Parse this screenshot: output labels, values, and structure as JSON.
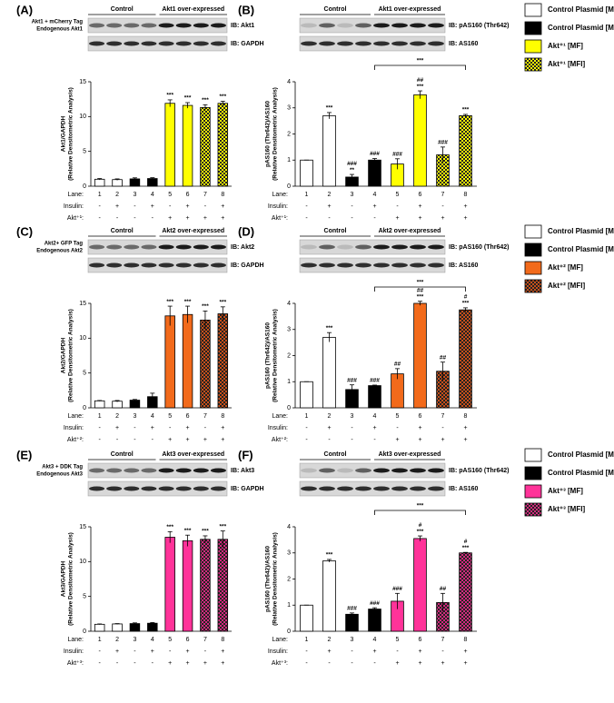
{
  "chart_data": [
    {
      "type": "bar",
      "panel": "(A)",
      "blot": {
        "groups": [
          "Control",
          "Akt1 over-expressed"
        ],
        "left_labels": [
          "Akt1 + mCherry Tag",
          "Endogenous Akt1"
        ],
        "ib_labels": [
          "IB: Akt1",
          "IB: GAPDH"
        ]
      },
      "ylabel": [
        "Akt1/GAPDH",
        "(Relative Densitometric Analysis)"
      ],
      "categories": [
        "1",
        "2",
        "3",
        "4",
        "5",
        "6",
        "7",
        "8"
      ],
      "values": [
        1,
        0.95,
        1.05,
        1.1,
        11.9,
        11.6,
        11.3,
        11.9
      ],
      "errors": [
        0.1,
        0.1,
        0.15,
        0.12,
        0.5,
        0.4,
        0.4,
        0.3
      ],
      "annotations": [
        [],
        [],
        [],
        [],
        [
          "***"
        ],
        [
          "***"
        ],
        [
          "***"
        ],
        [
          "***"
        ]
      ],
      "bar_colors": [
        "#ffffff",
        "#ffffff",
        "#000000",
        "#000000",
        "#ffff00",
        "#ffff00",
        "#ffff00",
        "#ffff00"
      ],
      "bar_hatch": [
        false,
        false,
        false,
        false,
        false,
        false,
        true,
        true
      ],
      "ylim": [
        0,
        15
      ],
      "yticks": [
        0,
        5,
        10,
        15
      ],
      "row_labels": [
        "Lane:",
        "Insulin:",
        "Akt⁺¹:"
      ],
      "insulin": [
        "-",
        "+",
        "-",
        "+",
        "-",
        "+",
        "-",
        "+"
      ],
      "akt": [
        "-",
        "-",
        "-",
        "-",
        "+",
        "+",
        "+",
        "+"
      ]
    },
    {
      "type": "bar",
      "panel": "(B)",
      "blot": {
        "groups": [
          "Control",
          "Akt1 over-expressed"
        ],
        "ib_labels": [
          "IB: pAS160 (Thr642)",
          "IB: AS160"
        ]
      },
      "ylabel": [
        "pAS160 (Thr642)/AS160",
        "(Relative Densitometric Analysis)"
      ],
      "categories": [
        "1",
        "2",
        "3",
        "4",
        "5",
        "6",
        "7",
        "8"
      ],
      "values": [
        1,
        2.7,
        0.35,
        1,
        0.85,
        3.5,
        1.2,
        2.7
      ],
      "errors": [
        0,
        0.12,
        0.1,
        0.06,
        0.2,
        0.15,
        0.3,
        0.05
      ],
      "annotations": [
        [],
        [
          "***"
        ],
        [
          "###",
          "**"
        ],
        [
          "###"
        ],
        [
          "###"
        ],
        [
          "##",
          "***"
        ],
        [
          "###"
        ],
        [
          "***"
        ]
      ],
      "bracket": {
        "lanes": [
          "4",
          "8"
        ],
        "label": "***"
      },
      "bar_colors": [
        "#ffffff",
        "#ffffff",
        "#000000",
        "#000000",
        "#ffff00",
        "#ffff00",
        "#ffff00",
        "#ffff00"
      ],
      "bar_hatch": [
        false,
        false,
        false,
        false,
        false,
        false,
        true,
        true
      ],
      "ylim": [
        0,
        4
      ],
      "yticks": [
        0,
        1,
        2,
        3,
        4
      ],
      "row_labels": [
        "Lane:",
        "Insulin:",
        "Akt⁺¹:"
      ],
      "insulin": [
        "-",
        "+",
        "-",
        "+",
        "-",
        "+",
        "-",
        "+"
      ],
      "akt": [
        "-",
        "-",
        "-",
        "-",
        "+",
        "+",
        "+",
        "+"
      ],
      "legend": [
        {
          "name": "Control Plasmid [MF]",
          "color": "#ffffff",
          "hatch": false
        },
        {
          "name": "Control Plasmid [MFI]",
          "color": "#000000",
          "hatch": false
        },
        {
          "name": "Akt⁺¹ [MF]",
          "color": "#ffff00",
          "hatch": false
        },
        {
          "name": "Akt⁺¹ [MFI]",
          "color": "#ffff00",
          "hatch": true
        }
      ]
    },
    {
      "type": "bar",
      "panel": "(C)",
      "blot": {
        "groups": [
          "Control",
          "Akt2 over-expressed"
        ],
        "left_labels": [
          "Akt2+ GFP Tag",
          "Endogenous Akt2"
        ],
        "ib_labels": [
          "IB: Akt2",
          "IB: GAPDH"
        ]
      },
      "ylabel": [
        "Akt2/GAPDH",
        "(Relative Densitometric Analysis)"
      ],
      "categories": [
        "1",
        "2",
        "3",
        "4",
        "5",
        "6",
        "7",
        "8"
      ],
      "values": [
        1,
        0.95,
        1.1,
        1.6,
        13.2,
        13.4,
        12.6,
        13.5
      ],
      "errors": [
        0.05,
        0.1,
        0.1,
        0.5,
        1.4,
        1.2,
        1.3,
        1.0
      ],
      "annotations": [
        [],
        [],
        [],
        [],
        [
          "***"
        ],
        [
          "***"
        ],
        [
          "***"
        ],
        [
          "***"
        ]
      ],
      "bar_colors": [
        "#ffffff",
        "#ffffff",
        "#000000",
        "#000000",
        "#f26a1b",
        "#f26a1b",
        "#c8501a",
        "#c8501a"
      ],
      "bar_hatch": [
        false,
        false,
        false,
        false,
        false,
        false,
        true,
        true
      ],
      "ylim": [
        0,
        15
      ],
      "yticks": [
        0,
        5,
        10,
        15
      ],
      "row_labels": [
        "Lane:",
        "Insulin:",
        "Akt⁺²:"
      ],
      "insulin": [
        "-",
        "+",
        "-",
        "+",
        "-",
        "+",
        "-",
        "+"
      ],
      "akt": [
        "-",
        "-",
        "-",
        "-",
        "+",
        "+",
        "+",
        "+"
      ]
    },
    {
      "type": "bar",
      "panel": "(D)",
      "blot": {
        "groups": [
          "Control",
          "Akt2 over-expressed"
        ],
        "ib_labels": [
          "IB: pAS160 (Thr642)",
          "IB: AS160"
        ]
      },
      "ylabel": [
        "pAS160 (Thr642)/AS160",
        "(Relative Densitometric Analysis)"
      ],
      "categories": [
        "1",
        "2",
        "3",
        "4",
        "5",
        "6",
        "7",
        "8"
      ],
      "values": [
        1,
        2.7,
        0.7,
        0.85,
        1.3,
        4.0,
        1.4,
        3.75
      ],
      "errors": [
        0,
        0.18,
        0.18,
        0.02,
        0.2,
        0.08,
        0.35,
        0.08
      ],
      "annotations": [
        [],
        [
          "***"
        ],
        [
          "###"
        ],
        [
          "###"
        ],
        [
          "##"
        ],
        [
          "##",
          "***"
        ],
        [
          "##"
        ],
        [
          "#",
          "***"
        ]
      ],
      "bracket": {
        "lanes": [
          "4",
          "8"
        ],
        "label": "***"
      },
      "bar_colors": [
        "#ffffff",
        "#ffffff",
        "#000000",
        "#000000",
        "#f26a1b",
        "#f26a1b",
        "#c8501a",
        "#c8501a"
      ],
      "bar_hatch": [
        false,
        false,
        false,
        false,
        false,
        false,
        true,
        true
      ],
      "ylim": [
        0,
        4
      ],
      "yticks": [
        0,
        1,
        2,
        3,
        4
      ],
      "row_labels": [
        "Lane:",
        "Insulin:",
        "Akt⁺²:"
      ],
      "insulin": [
        "-",
        "+",
        "-",
        "+",
        "-",
        "+",
        "-",
        "+"
      ],
      "akt": [
        "-",
        "-",
        "-",
        "-",
        "+",
        "+",
        "+",
        "+"
      ],
      "legend": [
        {
          "name": "Control Plasmid [MF]",
          "color": "#ffffff",
          "hatch": false
        },
        {
          "name": "Control Plasmid [MFI]",
          "color": "#000000",
          "hatch": false
        },
        {
          "name": "Akt⁺² [MF]",
          "color": "#f26a1b",
          "hatch": false
        },
        {
          "name": "Akt⁺² [MFI]",
          "color": "#c8501a",
          "hatch": true
        }
      ]
    },
    {
      "type": "bar",
      "panel": "(E)",
      "blot": {
        "groups": [
          "Control",
          "Akt3 over-expressed"
        ],
        "left_labels": [
          "Akt3 + DDK Tag",
          "Endogenous Akt3"
        ],
        "ib_labels": [
          "IB: Akt3",
          "IB: GAPDH"
        ]
      },
      "ylabel": [
        "Akt3/GAPDH",
        "(Relative Densitometric Analysis)"
      ],
      "categories": [
        "1",
        "2",
        "3",
        "4",
        "5",
        "6",
        "7",
        "8"
      ],
      "values": [
        1,
        1.05,
        1.1,
        1.15,
        13.5,
        13.0,
        13.2,
        13.2
      ],
      "errors": [
        0.05,
        0.05,
        0.1,
        0.1,
        0.8,
        0.8,
        0.5,
        1.2
      ],
      "annotations": [
        [],
        [],
        [],
        [],
        [
          "***"
        ],
        [
          "***"
        ],
        [
          "***"
        ],
        [
          "***"
        ]
      ],
      "bar_colors": [
        "#ffffff",
        "#ffffff",
        "#000000",
        "#000000",
        "#ff3399",
        "#ff3399",
        "#d42a7f",
        "#d42a7f"
      ],
      "bar_hatch": [
        false,
        false,
        false,
        false,
        false,
        false,
        true,
        true
      ],
      "ylim": [
        0,
        15
      ],
      "yticks": [
        0,
        5,
        10,
        15
      ],
      "row_labels": [
        "Lane:",
        "Insulin:",
        "Akt⁺³:"
      ],
      "insulin": [
        "-",
        "+",
        "-",
        "+",
        "-",
        "+",
        "-",
        "+"
      ],
      "akt": [
        "-",
        "-",
        "-",
        "-",
        "+",
        "+",
        "+",
        "+"
      ]
    },
    {
      "type": "bar",
      "panel": "(F)",
      "blot": {
        "groups": [
          "Control",
          "Akt3 over-expressed"
        ],
        "ib_labels": [
          "IB: pAS160 (Thr642)",
          "IB: AS160"
        ]
      },
      "ylabel": [
        "pAS160 (Thr642)/AS160",
        "(Relative Densitometric Analysis)"
      ],
      "categories": [
        "1",
        "2",
        "3",
        "4",
        "5",
        "6",
        "7",
        "8"
      ],
      "values": [
        1,
        2.7,
        0.65,
        0.85,
        1.15,
        3.55,
        1.1,
        3.0
      ],
      "errors": [
        0,
        0.05,
        0.05,
        0.05,
        0.3,
        0.1,
        0.35,
        0.02
      ],
      "annotations": [
        [],
        [
          "***"
        ],
        [
          "###"
        ],
        [
          "###"
        ],
        [
          "###"
        ],
        [
          "#",
          "***"
        ],
        [
          "##"
        ],
        [
          "#",
          "***"
        ]
      ],
      "bracket": {
        "lanes": [
          "4",
          "8"
        ],
        "label": "***"
      },
      "bar_colors": [
        "#ffffff",
        "#ffffff",
        "#000000",
        "#000000",
        "#ff3399",
        "#ff3399",
        "#d42a7f",
        "#d42a7f"
      ],
      "bar_hatch": [
        false,
        false,
        false,
        false,
        false,
        false,
        true,
        true
      ],
      "ylim": [
        0,
        4
      ],
      "yticks": [
        0,
        1,
        2,
        3,
        4
      ],
      "row_labels": [
        "Lane:",
        "Insulin:",
        "Akt⁺³:"
      ],
      "insulin": [
        "-",
        "+",
        "-",
        "+",
        "-",
        "+",
        "-",
        "+"
      ],
      "akt": [
        "-",
        "-",
        "-",
        "-",
        "+",
        "+",
        "+",
        "+"
      ],
      "legend": [
        {
          "name": "Control Plasmid [MF]",
          "color": "#ffffff",
          "hatch": false
        },
        {
          "name": "Control Plasmid [MFI]",
          "color": "#000000",
          "hatch": false
        },
        {
          "name": "Akt⁺³ [MF]",
          "color": "#ff3399",
          "hatch": false
        },
        {
          "name": "Akt⁺³ [MFI]",
          "color": "#d42a7f",
          "hatch": true
        }
      ]
    }
  ]
}
